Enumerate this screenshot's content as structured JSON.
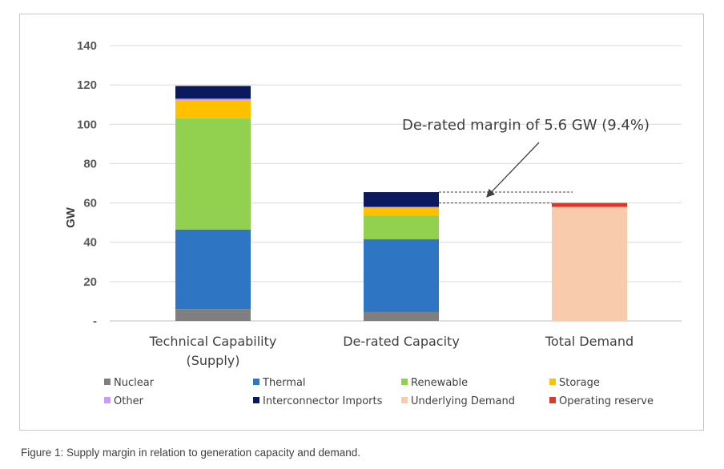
{
  "caption": "Figure 1: Supply margin in relation to generation capacity and demand.",
  "chart_data": {
    "type": "bar",
    "stacked": true,
    "title": "",
    "xlabel": "",
    "ylabel": "GW",
    "ylim": [
      0,
      140
    ],
    "yticks": [
      0,
      20,
      40,
      60,
      80,
      100,
      120,
      140
    ],
    "ytick_labels": [
      "-",
      "20",
      "40",
      "60",
      "80",
      "100",
      "120",
      "140"
    ],
    "grid": true,
    "legend_position": "bottom",
    "categories": [
      "Technical Capability (Supply)",
      "De-rated Capacity",
      "Total Demand"
    ],
    "category_label_lines": [
      [
        "Technical Capability",
        "(Supply)"
      ],
      [
        "De-rated Capacity"
      ],
      [
        "Total Demand"
      ]
    ],
    "series": [
      {
        "name": "Nuclear",
        "color": "#7f7f7f",
        "values": [
          6,
          4.5,
          0
        ]
      },
      {
        "name": "Thermal",
        "color": "#2e75c3",
        "values": [
          40.5,
          37,
          0
        ]
      },
      {
        "name": "Renewable",
        "color": "#92d050",
        "values": [
          56.5,
          12,
          0
        ]
      },
      {
        "name": "Storage",
        "color": "#ffc000",
        "values": [
          9,
          4,
          0
        ]
      },
      {
        "name": "Other",
        "color": "#cc99ff",
        "values": [
          1,
          0.5,
          0
        ]
      },
      {
        "name": "Interconnector Imports",
        "color": "#0b1a5c",
        "values": [
          6.5,
          7.5,
          0
        ]
      },
      {
        "name": "Underlying Demand",
        "color": "#f8cbad",
        "values": [
          0,
          0,
          58
        ]
      },
      {
        "name": "Operating reserve",
        "color": "#d9382b",
        "values": [
          0,
          0,
          2
        ]
      }
    ],
    "annotation": {
      "text": "De-rated margin of 5.6 GW (9.4%)",
      "upper_value": 65.5,
      "lower_value": 60
    }
  }
}
